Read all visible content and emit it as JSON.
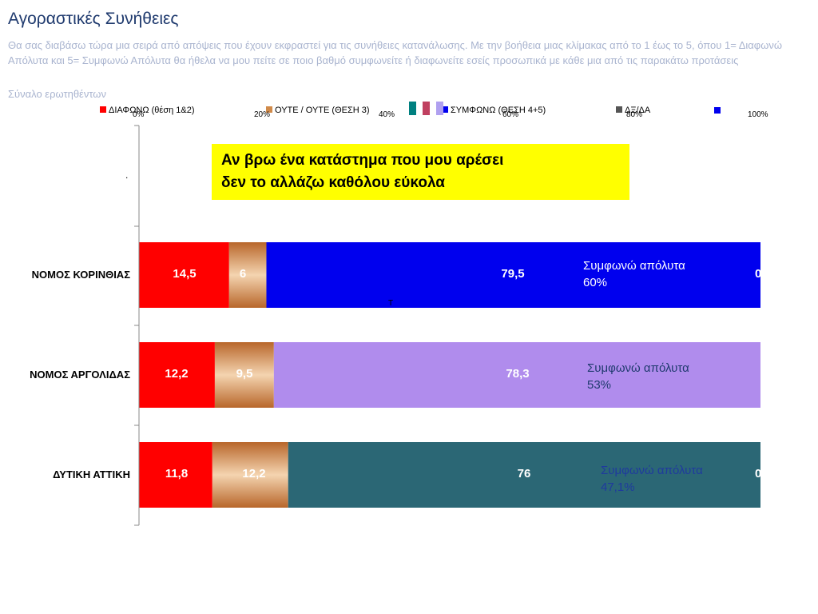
{
  "title": "Αγοραστικές Συνήθειες",
  "subtitle": "Θα σας διαβάσω τώρα μια σειρά από απόψεις που έχουν εκφραστεί για τις συνήθειες κατανάλωσης. Με την βοήθεια μιας κλίμακας από το 1 έως το 5, όπου 1= Διαφωνώ Απόλυτα και 5= Συμφωνώ Απόλυτα θα ήθελα να μου πείτε σε ποιο βαθμό συμφωνείτε ή διαφωνείτε εσείς προσωπικά με κάθε μια από τις παρακάτω προτάσεις",
  "base": "Σύναλο ερωτηθέντων",
  "statement": {
    "line1": "Αν βρω ένα κατάστημα που μου αρέσει",
    "line2": "δεν το αλλάζω καθόλου εύκολα"
  },
  "legend": [
    {
      "label": "ΔΙΑΦΩΝΩ (θέση 1&2)",
      "color": "#ff0000"
    },
    {
      "label": "ΟΥΤΕ / ΟΥΤΕ (ΘΕΣΗ 3)",
      "color": "#d08a4a"
    },
    {
      "label": "ΣΥΜΦΩΝΩ (ΘΕΣΗ 4+5)",
      "color": "#0000ee"
    },
    {
      "label": "ΔΞ/ΔΑ",
      "color": "#555555"
    }
  ],
  "ticks": [
    "0%",
    "20%",
    "40%",
    "60%",
    "80%",
    "100%"
  ],
  "colors": {
    "disagree": "#ff0000",
    "neutral": "#cf7a2e",
    "teal_deco": "#008080",
    "pink_deco": "#c04060",
    "lilac_deco": "#b0a0f0",
    "blue_deco": "#0000ee"
  },
  "stray_dot": ".",
  "stray_mark": "Τ",
  "annotations": [
    {
      "text": "Συμφωνώ απόλυτα",
      "value": "60%",
      "color": "#ffffff"
    },
    {
      "text": "Συμφωνώ απόλυτα",
      "value": "53%",
      "color": "#1f3a6e"
    },
    {
      "text": "Συμφωνώ απόλυτα",
      "value": "47,1%",
      "color": "#1f3a9e"
    }
  ],
  "zero_labels": [
    "0",
    "",
    "0"
  ],
  "chart_data": {
    "type": "bar",
    "orientation": "horizontal-stacked-percent",
    "categories": [
      "",
      "ΝΟΜΟΣ ΚΟΡΙΝΘΙΑΣ",
      "ΝΟΜΟΣ ΑΡΓΟΛΙΔΑΣ",
      "ΔΥΤΙΚΗ ΑΤΤΙΚΗ"
    ],
    "series": [
      {
        "name": "ΔΙΑΦΩΝΩ (θέση 1&2)",
        "values": [
          null,
          14.5,
          12.2,
          11.8
        ],
        "labels": [
          "",
          "14,5",
          "12,2",
          "11,8"
        ],
        "color": "#ff0000"
      },
      {
        "name": "ΟΥΤΕ / ΟΥΤΕ (ΘΕΣΗ 3)",
        "values": [
          null,
          6,
          9.5,
          12.2
        ],
        "labels": [
          "",
          "6",
          "9,5",
          "12,2"
        ],
        "color": "#cf7a2e"
      },
      {
        "name": "ΣΥΜΦΩΝΩ (ΘΕΣΗ 4+5)",
        "values": [
          null,
          79.5,
          78.3,
          76
        ],
        "labels": [
          "",
          "79,5",
          "78,3",
          "76"
        ],
        "colors": [
          "",
          "#0000ee",
          "#b08ced",
          "#2b6775"
        ]
      },
      {
        "name": "ΔΞ/ΔΑ",
        "values": [
          null,
          0,
          0,
          0
        ],
        "color": "#555555"
      }
    ],
    "xlim": [
      0,
      100
    ],
    "grid": false,
    "legend_position": "top"
  }
}
